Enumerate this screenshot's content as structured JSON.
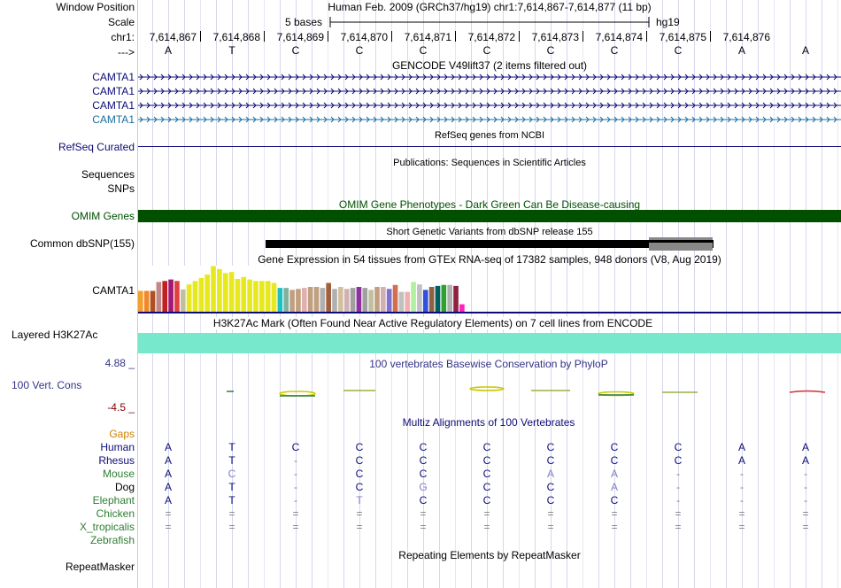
{
  "header": {
    "window_position_label": "Window Position",
    "scale_label": "Scale",
    "chr_label": "chr1:",
    "arrow_label": "--->",
    "genome_title": "Human Feb. 2009 (GRCh37/hg19)   chr1:7,614,867-7,614,877 (11 bp)",
    "scale_text": "5 bases",
    "assembly": "hg19",
    "positions": [
      "7,614,867",
      "7,614,868",
      "7,614,869",
      "7,614,870",
      "7,614,871",
      "7,614,872",
      "7,614,873",
      "7,614,874",
      "7,614,875",
      "7,614,876"
    ],
    "bases": [
      "A",
      "T",
      "C",
      "C",
      "C",
      "C",
      "C",
      "C",
      "C",
      "A",
      "A"
    ]
  },
  "tracks": {
    "gencode": {
      "title": "GENCODE V49lift37 (2 items filtered out)",
      "items": [
        {
          "label": "CAMTA1",
          "color": "#0c0c78"
        },
        {
          "label": "CAMTA1",
          "color": "#0c0c78"
        },
        {
          "label": "CAMTA1",
          "color": "#0c0c78"
        },
        {
          "label": "CAMTA1",
          "color": "#1a6da0"
        }
      ]
    },
    "refseq": {
      "label": "RefSeq Curated",
      "title": "RefSeq genes from NCBI"
    },
    "publications": {
      "title": "Publications: Sequences in Scientific Articles",
      "labels": [
        "Sequences",
        "SNPs"
      ]
    },
    "omim": {
      "label": "OMIM Genes",
      "title": "OMIM Gene Phenotypes - Dark Green Can Be Disease-causing",
      "color": "#005000"
    },
    "dbsnp": {
      "label": "Common dbSNP(155)",
      "title": "Short Genetic Variants from dbSNP release 155"
    },
    "gtex": {
      "title": "Gene Expression in 54 tissues from GTEx RNA-seq of 17382 samples, 948 donors (V8, Aug 2019)",
      "label": "CAMTA1",
      "bars": [
        {
          "v": 0.42,
          "c": "#f0a030"
        },
        {
          "v": 0.42,
          "c": "#f08828"
        },
        {
          "v": 0.42,
          "c": "#b05020"
        },
        {
          "v": 0.6,
          "c": "#c08888"
        },
        {
          "v": 0.62,
          "c": "#c02020"
        },
        {
          "v": 0.65,
          "c": "#a01878"
        },
        {
          "v": 0.62,
          "c": "#e04040"
        },
        {
          "v": 0.45,
          "c": "#c0c0a0"
        },
        {
          "v": 0.55,
          "c": "#e8e820"
        },
        {
          "v": 0.62,
          "c": "#e8e820"
        },
        {
          "v": 0.68,
          "c": "#e8e820"
        },
        {
          "v": 0.75,
          "c": "#e8e820"
        },
        {
          "v": 0.92,
          "c": "#e8e820"
        },
        {
          "v": 0.86,
          "c": "#e8e820"
        },
        {
          "v": 0.78,
          "c": "#e8e820"
        },
        {
          "v": 0.8,
          "c": "#e8e820"
        },
        {
          "v": 0.66,
          "c": "#e8e820"
        },
        {
          "v": 0.7,
          "c": "#e8e820"
        },
        {
          "v": 0.65,
          "c": "#e8e820"
        },
        {
          "v": 0.62,
          "c": "#e8e820"
        },
        {
          "v": 0.62,
          "c": "#e8e820"
        },
        {
          "v": 0.62,
          "c": "#e8e820"
        },
        {
          "v": 0.58,
          "c": "#e8e820"
        },
        {
          "v": 0.48,
          "c": "#20c0c0"
        },
        {
          "v": 0.48,
          "c": "#80b0a0"
        },
        {
          "v": 0.44,
          "c": "#c0a080"
        },
        {
          "v": 0.46,
          "c": "#c0a080"
        },
        {
          "v": 0.48,
          "c": "#e0b0b0"
        },
        {
          "v": 0.5,
          "c": "#c0a080"
        },
        {
          "v": 0.5,
          "c": "#c0a080"
        },
        {
          "v": 0.48,
          "c": "#b0b0b0"
        },
        {
          "v": 0.58,
          "c": "#a06040"
        },
        {
          "v": 0.46,
          "c": "#b0b0b0"
        },
        {
          "v": 0.5,
          "c": "#d0c0a0"
        },
        {
          "v": 0.46,
          "c": "#d0b0b0"
        },
        {
          "v": 0.48,
          "c": "#a0a0a0"
        },
        {
          "v": 0.5,
          "c": "#9030a0"
        },
        {
          "v": 0.48,
          "c": "#a0a0a0"
        },
        {
          "v": 0.44,
          "c": "#c0c0a0"
        },
        {
          "v": 0.5,
          "c": "#c0a080"
        },
        {
          "v": 0.5,
          "c": "#d0b0b0"
        },
        {
          "v": 0.46,
          "c": "#8070d0"
        },
        {
          "v": 0.54,
          "c": "#d07050"
        },
        {
          "v": 0.4,
          "c": "#c0c0c0"
        },
        {
          "v": 0.4,
          "c": "#f0b0b0"
        },
        {
          "v": 0.6,
          "c": "#b0f0a0"
        },
        {
          "v": 0.55,
          "c": "#c0c0c0"
        },
        {
          "v": 0.44,
          "c": "#3050e0"
        },
        {
          "v": 0.5,
          "c": "#906040"
        },
        {
          "v": 0.52,
          "c": "#006060"
        },
        {
          "v": 0.54,
          "c": "#30a030"
        },
        {
          "v": 0.54,
          "c": "#b0b0b0"
        },
        {
          "v": 0.52,
          "c": "#902040"
        },
        {
          "v": 0.15,
          "c": "#ff20c0"
        }
      ]
    },
    "h3k27ac": {
      "label": "Layered H3K27Ac",
      "title": "H3K27Ac Mark (Often Found Near Active Regulatory Elements) on 7 cell lines from ENCODE",
      "color": "#78e8cc"
    },
    "phylop": {
      "label": "100 Vert. Cons",
      "max": "4.88 _",
      "min": "-4.5 _",
      "title": "100 vertebrates Basewise Conservation by PhyloP"
    },
    "multiz": {
      "title": "Multiz Alignments of 100 Vertebrates",
      "gaps_label": "Gaps",
      "species": [
        {
          "name": "Human",
          "color": "#0c0c78",
          "bases": [
            "A",
            "T",
            "C",
            "C",
            "C",
            "C",
            "C",
            "C",
            "C",
            "A",
            "A"
          ]
        },
        {
          "name": "Rhesus",
          "color": "#0c0c78",
          "bases": [
            "A",
            "T",
            "-",
            "C",
            "C",
            "C",
            "C",
            "C",
            "C",
            "A",
            "A"
          ]
        },
        {
          "name": "Mouse",
          "color": "#2e7d32",
          "bases": [
            "A",
            "C",
            "-",
            "C",
            "C",
            "C",
            "A",
            "A",
            "-",
            "-",
            "-"
          ]
        },
        {
          "name": "Dog",
          "color": "#000000",
          "bases": [
            "A",
            "T",
            "-",
            "C",
            "G",
            "C",
            "C",
            "A",
            "-",
            "-",
            "-"
          ]
        },
        {
          "name": "Elephant",
          "color": "#2e7d32",
          "bases": [
            "A",
            "T",
            "-",
            "T",
            "C",
            "C",
            "C",
            "C",
            "-",
            "-",
            "-"
          ]
        },
        {
          "name": "Chicken",
          "color": "#2e7d32",
          "bases": [
            "=",
            "=",
            "=",
            "=",
            "=",
            "=",
            "=",
            "=",
            "=",
            "=",
            "="
          ]
        },
        {
          "name": "X_tropicalis",
          "color": "#2e7d32",
          "bases": [
            "=",
            "=",
            "=",
            "=",
            "=",
            "=",
            "=",
            "=",
            "=",
            "=",
            "="
          ]
        },
        {
          "name": "Zebrafish",
          "color": "#2e7d32",
          "bases": [
            "",
            "",
            "",
            "",
            "",
            "",
            "",
            "",
            "",
            "",
            ""
          ]
        }
      ]
    },
    "repeatmasker": {
      "label": "RepeatMasker",
      "title": "Repeating Elements by RepeatMasker"
    }
  }
}
